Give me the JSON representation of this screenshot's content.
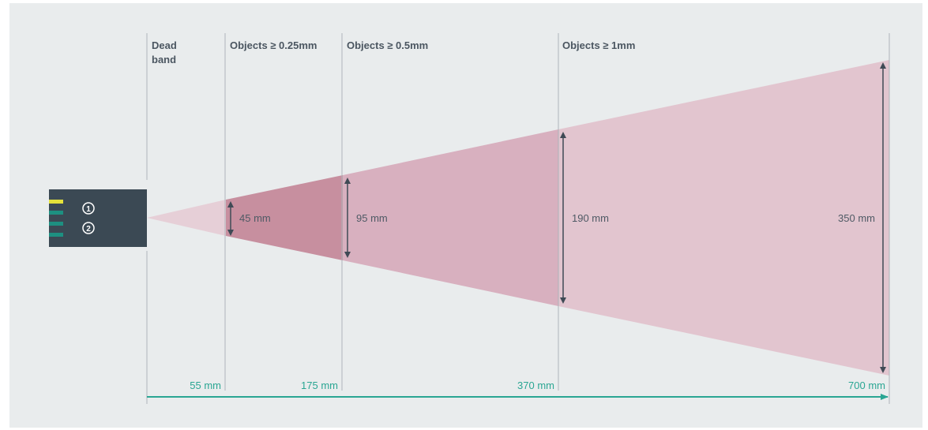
{
  "zones": [
    {
      "label_lines": [
        "Dead",
        "band"
      ]
    },
    {
      "label_lines": [
        "Objects ≥ 0.25mm"
      ]
    },
    {
      "label_lines": [
        "Objects ≥ 0.5mm"
      ]
    },
    {
      "label_lines": [
        "Objects ≥ 1mm"
      ]
    }
  ],
  "spans": [
    {
      "label": "45 mm"
    },
    {
      "label": "95 mm"
    },
    {
      "label": "190 mm"
    },
    {
      "label": "350 mm"
    }
  ],
  "distances": [
    {
      "label": "55 mm"
    },
    {
      "label": "175 mm"
    },
    {
      "label": "370 mm"
    },
    {
      "label": "700 mm"
    }
  ],
  "sensor": {
    "led_numbers": [
      "1",
      "2"
    ]
  },
  "colors": {
    "background": "#e9eced",
    "sensor_body": "#3b4954",
    "led_yellow": "#e4e13a",
    "led_teal": "#1d9081",
    "beam_light": "#e2c5cf",
    "beam_mid": "#d8b0bf",
    "beam_dark": "#c78f9f",
    "accent_teal": "#2aa693"
  }
}
